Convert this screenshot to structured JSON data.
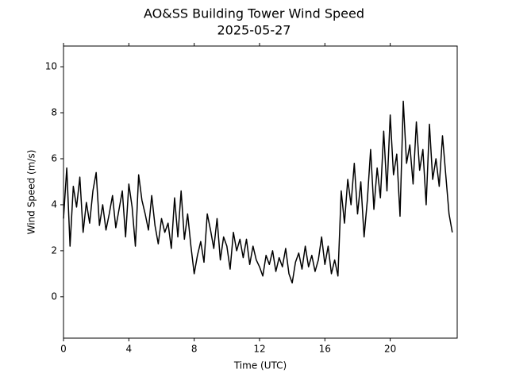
{
  "chart_data": {
    "type": "line",
    "title": "AO&SS Building Tower Wind Speed",
    "subtitle": "2025-05-27",
    "xlabel": "Time (UTC)",
    "ylabel": "Wind Speed (m/s)",
    "color": "#000000",
    "x": [
      0,
      0.2,
      0.4,
      0.6,
      0.8,
      1,
      1.2,
      1.4,
      1.6,
      1.8,
      2,
      2.2,
      2.4,
      2.6,
      2.8,
      3,
      3.2,
      3.4,
      3.6,
      3.8,
      4,
      4.2,
      4.4,
      4.6,
      4.8,
      5,
      5.2,
      5.4,
      5.6,
      5.8,
      6,
      6.2,
      6.4,
      6.6,
      6.8,
      7,
      7.2,
      7.4,
      7.6,
      7.8,
      8,
      8.2,
      8.4,
      8.6,
      8.8,
      9,
      9.2,
      9.4,
      9.6,
      9.8,
      10,
      10.2,
      10.4,
      10.6,
      10.8,
      11,
      11.2,
      11.4,
      11.6,
      11.8,
      12,
      12.2,
      12.4,
      12.6,
      12.8,
      13,
      13.2,
      13.4,
      13.6,
      13.8,
      14,
      14.2,
      14.4,
      14.6,
      14.8,
      15,
      15.2,
      15.4,
      15.6,
      15.8,
      16,
      16.2,
      16.4,
      16.6,
      16.8,
      17,
      17.2,
      17.4,
      17.6,
      17.8,
      18,
      18.2,
      18.4,
      18.6,
      18.8,
      19,
      19.2,
      19.4,
      19.6,
      19.8,
      20,
      20.2,
      20.4,
      20.6,
      20.8,
      21,
      21.2,
      21.4,
      21.6,
      21.8,
      22,
      22.2,
      22.4,
      22.6,
      22.8,
      23,
      23.2,
      23.4,
      23.6,
      23.8
    ],
    "values": [
      3.4,
      5.6,
      2.2,
      4.8,
      3.9,
      5.2,
      2.8,
      4.1,
      3.2,
      4.6,
      5.4,
      3.1,
      4.0,
      2.9,
      3.6,
      4.4,
      3.0,
      3.8,
      4.6,
      2.6,
      4.9,
      3.9,
      2.2,
      5.3,
      4.2,
      3.6,
      2.9,
      4.4,
      3.1,
      2.3,
      3.4,
      2.8,
      3.2,
      2.1,
      4.3,
      2.6,
      4.6,
      2.5,
      3.6,
      2.2,
      1.0,
      1.8,
      2.4,
      1.5,
      3.6,
      2.9,
      2.1,
      3.4,
      1.6,
      2.6,
      2.2,
      1.2,
      2.8,
      2.0,
      2.5,
      1.7,
      2.5,
      1.4,
      2.2,
      1.6,
      1.3,
      0.9,
      1.8,
      1.4,
      2.0,
      1.1,
      1.7,
      1.3,
      2.1,
      1.0,
      0.6,
      1.5,
      1.9,
      1.2,
      2.2,
      1.3,
      1.8,
      1.1,
      1.6,
      2.6,
      1.4,
      2.2,
      1.0,
      1.6,
      0.9,
      4.6,
      3.2,
      5.1,
      4.0,
      5.8,
      3.6,
      5.0,
      2.6,
      4.2,
      6.4,
      3.8,
      5.6,
      4.3,
      7.2,
      4.6,
      7.9,
      5.3,
      6.2,
      3.5,
      8.5,
      5.8,
      6.6,
      4.9,
      7.6,
      5.5,
      6.4,
      4.0,
      7.5,
      5.1,
      6.0,
      4.8,
      7.0,
      5.3,
      3.6,
      2.8
    ],
    "xlim": [
      0,
      24.1
    ],
    "ylim": [
      -1.8,
      10.9
    ],
    "xticks": [
      0,
      4,
      8,
      12,
      16,
      20
    ],
    "yticks": [
      0,
      2,
      4,
      6,
      8,
      10
    ]
  }
}
